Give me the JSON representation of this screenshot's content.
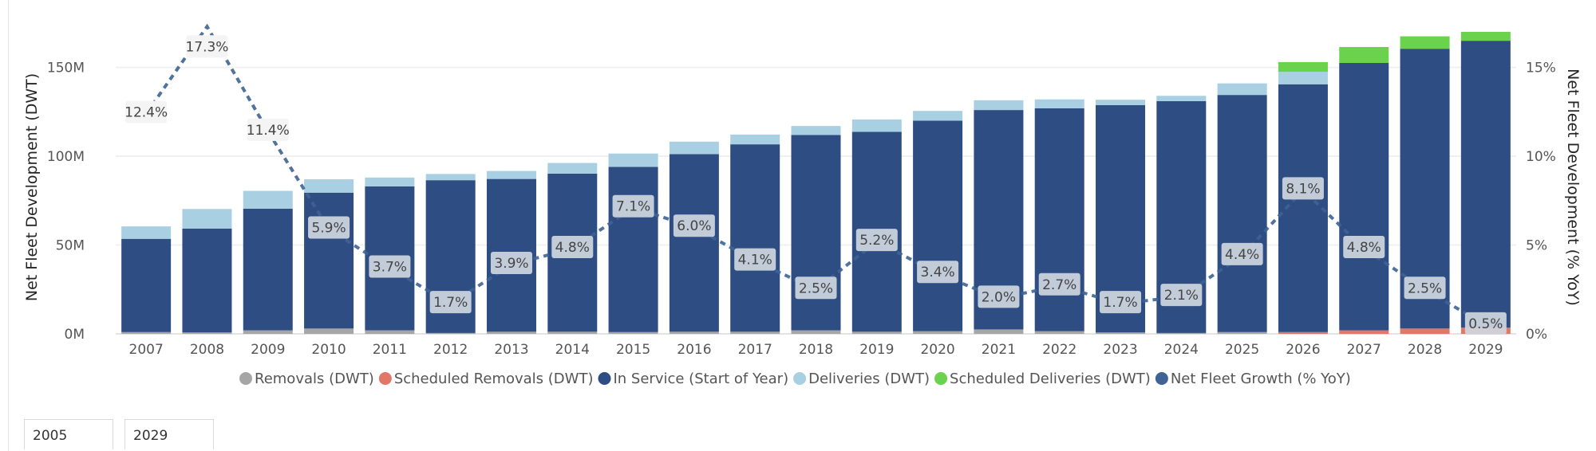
{
  "chart_data": {
    "type": "bar",
    "categories": [
      "2007",
      "2008",
      "2009",
      "2010",
      "2011",
      "2012",
      "2013",
      "2014",
      "2015",
      "2016",
      "2017",
      "2018",
      "2019",
      "2020",
      "2021",
      "2022",
      "2023",
      "2024",
      "2025",
      "2026",
      "2027",
      "2028",
      "2029"
    ],
    "stacked": true,
    "ylabel": "Net Fleet Development (DWT)",
    "ylim": [
      0,
      170000000
    ],
    "y_ticks": [
      "0M",
      "50M",
      "100M",
      "150M"
    ],
    "y2label": "Net Fleet Development (% YoY)",
    "y2lim": [
      0,
      17
    ],
    "y2_ticks": [
      "0%",
      "5%",
      "10%",
      "15%"
    ],
    "legend_position": "bottom",
    "grid": true,
    "series": [
      {
        "name": "Removals (DWT)",
        "kind": "bar",
        "color": "#a6a6a6",
        "values": [
          1.0,
          0.8,
          2.0,
          3.0,
          2.0,
          0.5,
          1.2,
          1.2,
          1.0,
          1.2,
          1.2,
          2.0,
          1.2,
          1.5,
          2.5,
          1.5,
          0.8,
          0.5,
          1.0,
          0,
          0,
          0,
          0
        ]
      },
      {
        "name": "Scheduled Removals (DWT)",
        "kind": "bar",
        "color": "#e07767",
        "values": [
          0,
          0,
          0,
          0,
          0,
          0,
          0,
          0,
          0,
          0,
          0,
          0,
          0,
          0,
          0,
          0,
          0,
          0,
          0,
          1.0,
          2.0,
          3.0,
          3.5
        ]
      },
      {
        "name": "In Service (Start of Year)",
        "kind": "bar",
        "color": "#2e4d83",
        "values": [
          52.5,
          58.5,
          68.5,
          76.5,
          81.0,
          86.0,
          86.0,
          89.0,
          93.0,
          100.0,
          105.5,
          110.0,
          112.5,
          118.5,
          123.5,
          125.5,
          128.0,
          130.5,
          133.5,
          139.5,
          150.5,
          157.5,
          161.5
        ]
      },
      {
        "name": "Deliveries (DWT)",
        "kind": "bar",
        "color": "#a9cfe3",
        "values": [
          7.0,
          11.0,
          10.0,
          7.5,
          5.0,
          3.5,
          4.5,
          6.0,
          7.5,
          7.0,
          5.5,
          5.0,
          7.0,
          5.5,
          5.5,
          5.0,
          3.0,
          3.0,
          6.5,
          7.0,
          0,
          0,
          0
        ]
      },
      {
        "name": "Scheduled Deliveries (DWT)",
        "kind": "bar",
        "color": "#6ad24c",
        "values": [
          0,
          0,
          0,
          0,
          0,
          0,
          0,
          0,
          0,
          0,
          0,
          0,
          0,
          0,
          0,
          0,
          0,
          0,
          0,
          5.5,
          9.0,
          7.0,
          5.0
        ]
      },
      {
        "name": "Net Fleet Growth (% YoY)",
        "kind": "line",
        "axis": "right",
        "color": "#3e6394",
        "values": [
          12.4,
          17.3,
          11.4,
          5.9,
          3.7,
          1.7,
          3.9,
          4.8,
          7.1,
          6.0,
          4.1,
          2.5,
          5.2,
          3.4,
          2.0,
          2.7,
          1.7,
          2.1,
          4.4,
          8.1,
          4.8,
          2.5,
          0.5
        ],
        "labels": [
          "12.4%",
          "17.3%",
          "11.4%",
          "5.9%",
          "3.7%",
          "1.7%",
          "3.9%",
          "4.8%",
          "7.1%",
          "6.0%",
          "4.1%",
          "2.5%",
          "5.2%",
          "3.4%",
          "2.0%",
          "2.7%",
          "1.7%",
          "2.1%",
          "4.4%",
          "8.1%",
          "4.8%",
          "2.5%",
          "0.5%"
        ]
      }
    ],
    "bar_value_unit": "M DWT"
  },
  "slicer": {
    "start": "2005",
    "end": "2029"
  }
}
